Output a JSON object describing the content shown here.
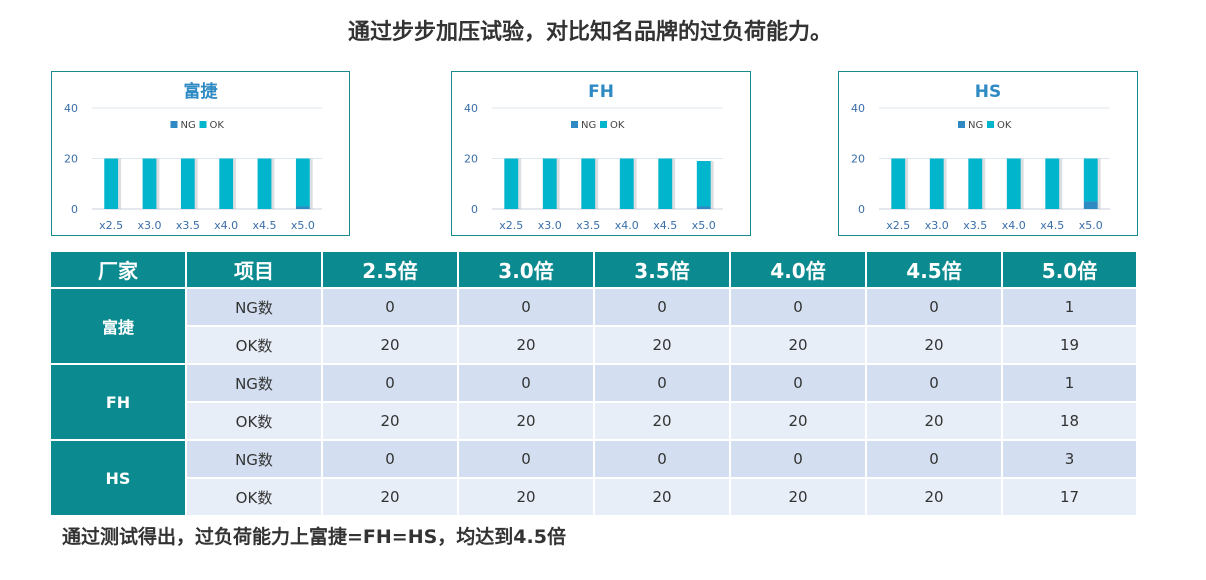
{
  "page": {
    "title": "通过步步加压试验，对比知名品牌的过负荷能力。",
    "footer": "通过测试得出，过负荷能力上富捷=FH=HS，均达到4.5倍"
  },
  "colors": {
    "ng": "#2f8ac4",
    "ok": "#00b5cc",
    "header": "#0b8a8f",
    "row_ng": "#d3dff0",
    "row_ok": "#e8eef8"
  },
  "chart_data": [
    {
      "type": "bar",
      "title": "富捷",
      "categories": [
        "x2.5",
        "x3.0",
        "x3.5",
        "x4.0",
        "x4.5",
        "x5.0"
      ],
      "series": [
        {
          "name": "NG",
          "values": [
            0,
            0,
            0,
            0,
            0,
            1
          ]
        },
        {
          "name": "OK",
          "values": [
            20,
            20,
            20,
            20,
            20,
            19
          ]
        }
      ],
      "ylim": [
        0,
        40
      ],
      "yticks": [
        0,
        20,
        40
      ],
      "legend": "top",
      "grid": true
    },
    {
      "type": "bar",
      "title": "FH",
      "categories": [
        "x2.5",
        "x3.0",
        "x3.5",
        "x4.0",
        "x4.5",
        "x5.0"
      ],
      "series": [
        {
          "name": "NG",
          "values": [
            0,
            0,
            0,
            0,
            0,
            1
          ]
        },
        {
          "name": "OK",
          "values": [
            20,
            20,
            20,
            20,
            20,
            18
          ]
        }
      ],
      "ylim": [
        0,
        40
      ],
      "yticks": [
        0,
        20,
        40
      ],
      "legend": "top",
      "grid": true
    },
    {
      "type": "bar",
      "title": "HS",
      "categories": [
        "x2.5",
        "x3.0",
        "x3.5",
        "x4.0",
        "x4.5",
        "x5.0"
      ],
      "series": [
        {
          "name": "NG",
          "values": [
            0,
            0,
            0,
            0,
            0,
            3
          ]
        },
        {
          "name": "OK",
          "values": [
            20,
            20,
            20,
            20,
            20,
            17
          ]
        }
      ],
      "ylim": [
        0,
        40
      ],
      "yticks": [
        0,
        20,
        40
      ],
      "legend": "top",
      "grid": true
    }
  ],
  "table": {
    "headers": [
      "厂家",
      "项目",
      "2.5倍",
      "3.0倍",
      "3.5倍",
      "4.0倍",
      "4.5倍",
      "5.0倍"
    ],
    "groups": [
      {
        "maker": "富捷",
        "rows": [
          {
            "item": "NG数",
            "values": [
              "0",
              "0",
              "0",
              "0",
              "0",
              "1"
            ]
          },
          {
            "item": "OK数",
            "values": [
              "20",
              "20",
              "20",
              "20",
              "20",
              "19"
            ]
          }
        ]
      },
      {
        "maker": "FH",
        "rows": [
          {
            "item": "NG数",
            "values": [
              "0",
              "0",
              "0",
              "0",
              "0",
              "1"
            ]
          },
          {
            "item": "OK数",
            "values": [
              "20",
              "20",
              "20",
              "20",
              "20",
              "18"
            ]
          }
        ]
      },
      {
        "maker": "HS",
        "rows": [
          {
            "item": "NG数",
            "values": [
              "0",
              "0",
              "0",
              "0",
              "0",
              "3"
            ]
          },
          {
            "item": "OK数",
            "values": [
              "20",
              "20",
              "20",
              "20",
              "20",
              "17"
            ]
          }
        ]
      }
    ]
  }
}
